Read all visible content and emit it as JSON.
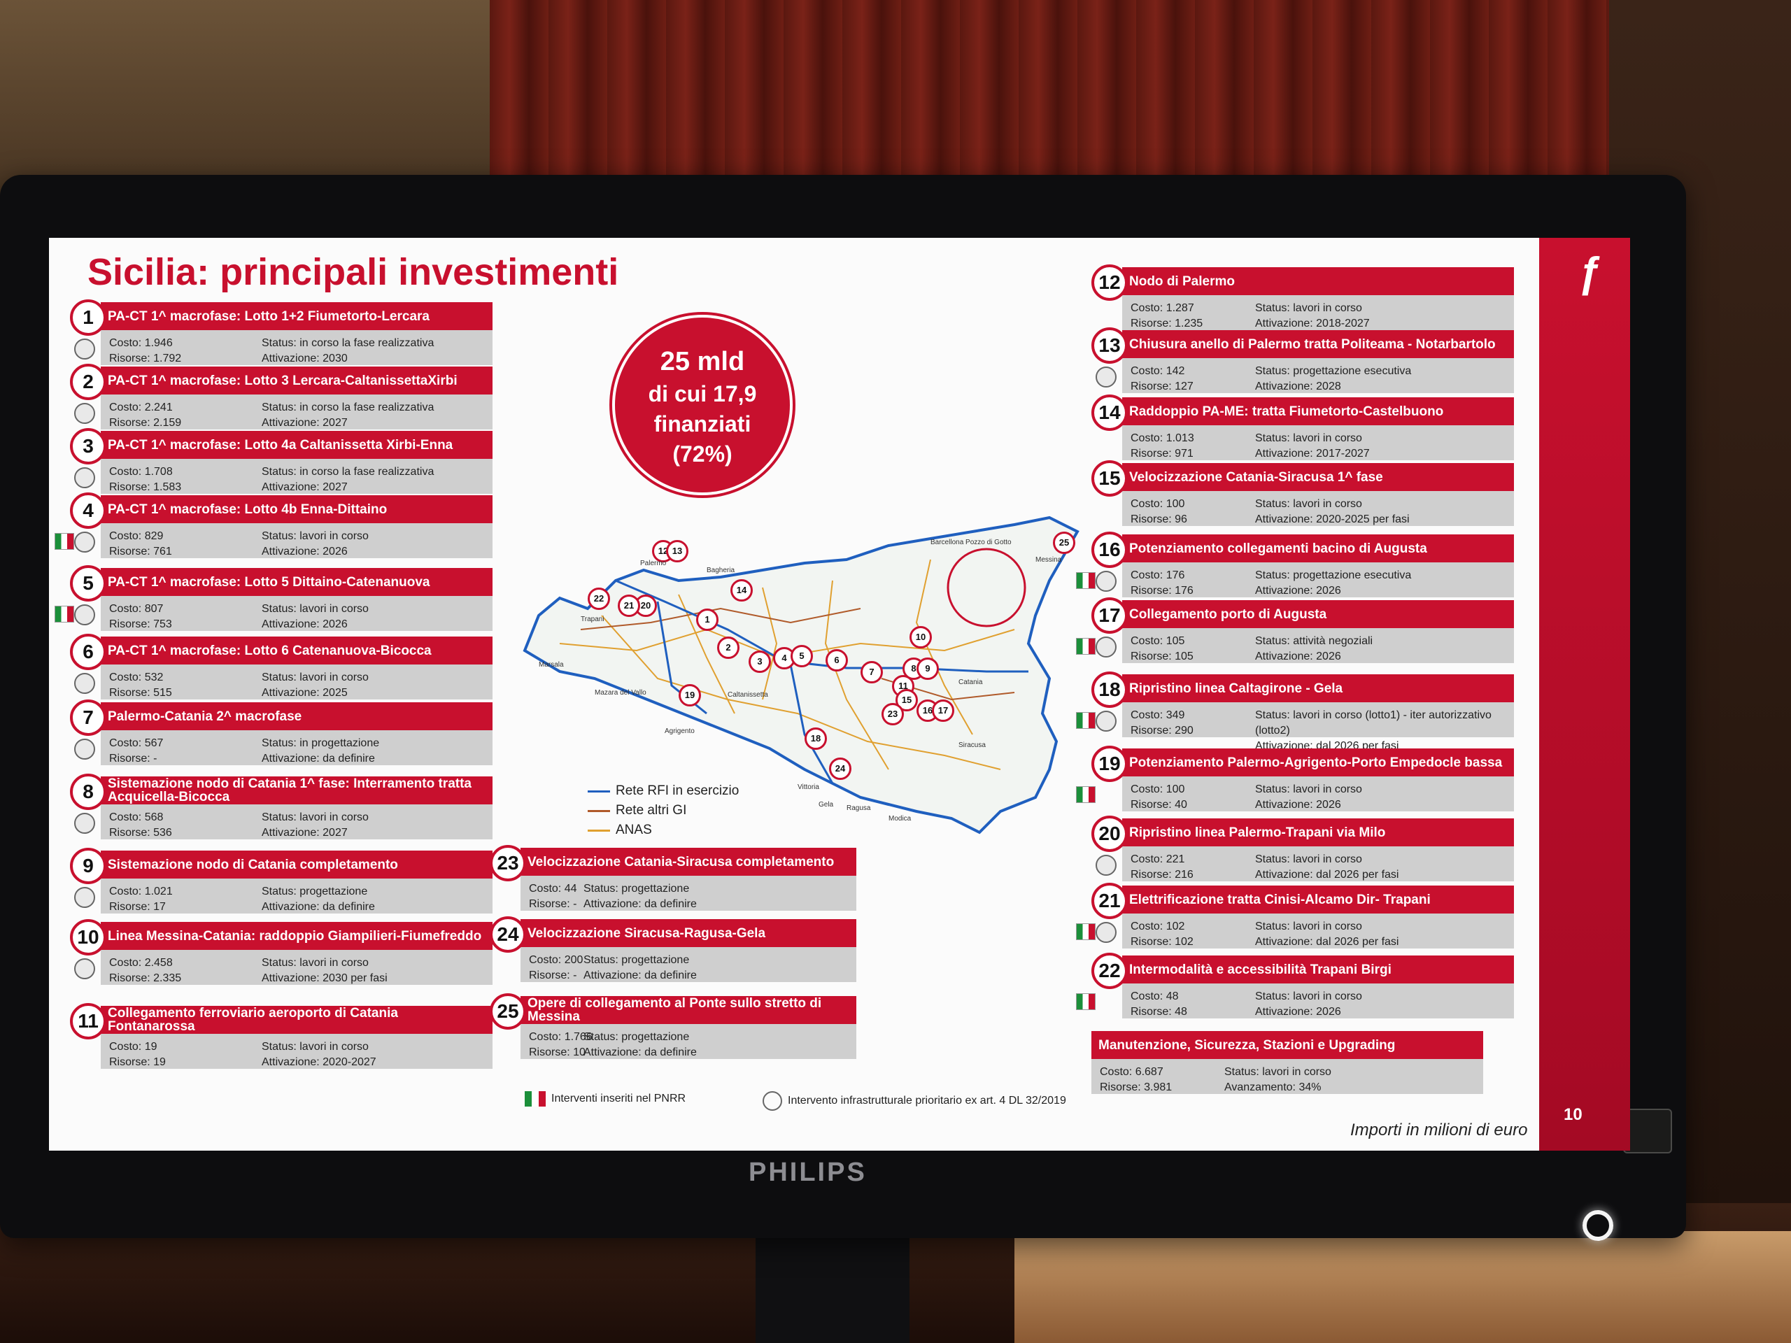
{
  "title": "Sicilia: principali investimenti",
  "summary": {
    "line1": "25 mld",
    "line2": "di cui 17,9",
    "line3": "finanziati",
    "line4": "(72%)"
  },
  "legend": [
    "Rete RFI in esercizio",
    "Rete altri GI",
    "ANAS"
  ],
  "legend_colors": [
    "#1f5fbf",
    "#b05a2a",
    "#e0a030"
  ],
  "footer_pnrr": "Interventi inseriti nel PNRR",
  "footer_prior": "Intervento infrastrutturale prioritario ex art. 4 DL 32/2019",
  "units_note": "Importi in milioni di euro",
  "page_number": "10",
  "monitor_brand": "PHILIPS",
  "map_labels": [
    "Palermo",
    "Bagheria",
    "Trapani",
    "Marsala",
    "Mazara del Vallo",
    "Agrigento",
    "Caltanissetta",
    "Messina",
    "Barcellona Pozzo di Gotto",
    "Catania",
    "Siracusa",
    "Gela",
    "Vittoria",
    "Ragusa",
    "Modica"
  ],
  "projects": [
    {
      "n": "1",
      "title": "PA-CT 1^ macrofase: Lotto 1+2 Fiumetorto-Lercara",
      "costo": "Costo: 1.946",
      "risorse": "Risorse: 1.792",
      "status": "Status: in corso la fase realizzativa",
      "attivazione": "Attivazione: 2030"
    },
    {
      "n": "2",
      "title": "PA-CT 1^ macrofase: Lotto 3 Lercara-CaltanissettaXirbi",
      "costo": "Costo: 2.241",
      "risorse": "Risorse: 2.159",
      "status": "Status: in corso la fase realizzativa",
      "attivazione": "Attivazione: 2027"
    },
    {
      "n": "3",
      "title": "PA-CT 1^ macrofase: Lotto 4a Caltanissetta Xirbi-Enna",
      "costo": "Costo: 1.708",
      "risorse": "Risorse: 1.583",
      "status": "Status: in corso la fase realizzativa",
      "attivazione": "Attivazione: 2027"
    },
    {
      "n": "4",
      "title": "PA-CT 1^ macrofase: Lotto 4b Enna-Dittaino",
      "costo": "Costo: 829",
      "risorse": "Risorse: 761",
      "status": "Status: lavori in corso",
      "attivazione": "Attivazione: 2026"
    },
    {
      "n": "5",
      "title": "PA-CT 1^ macrofase: Lotto 5 Dittaino-Catenanuova",
      "costo": "Costo: 807",
      "risorse": "Risorse: 753",
      "status": "Status: lavori in corso",
      "attivazione": "Attivazione: 2026"
    },
    {
      "n": "6",
      "title": "PA-CT 1^ macrofase: Lotto 6 Catenanuova-Bicocca",
      "costo": "Costo: 532",
      "risorse": "Risorse: 515",
      "status": "Status: lavori in corso",
      "attivazione": "Attivazione: 2025"
    },
    {
      "n": "7",
      "title": "Palermo-Catania 2^ macrofase",
      "costo": "Costo: 567",
      "risorse": "Risorse: -",
      "status": "Status: in progettazione",
      "attivazione": "Attivazione: da definire"
    },
    {
      "n": "8",
      "title": "Sistemazione nodo di Catania 1^ fase: Interramento tratta Acquicella-Bicocca",
      "costo": "Costo: 568",
      "risorse": "Risorse: 536",
      "status": "Status: lavori in corso",
      "attivazione": "Attivazione: 2027"
    },
    {
      "n": "9",
      "title": "Sistemazione nodo di Catania completamento",
      "costo": "Costo: 1.021",
      "risorse": "Risorse: 17",
      "status": "Status: progettazione",
      "attivazione": "Attivazione: da definire"
    },
    {
      "n": "10",
      "title": "Linea Messina-Catania: raddoppio Giampilieri-Fiumefreddo",
      "costo": "Costo: 2.458",
      "risorse": "Risorse: 2.335",
      "status": "Status: lavori in corso",
      "attivazione": "Attivazione: 2030 per fasi"
    },
    {
      "n": "11",
      "title": "Collegamento ferroviario aeroporto di Catania Fontanarossa",
      "costo": "Costo: 19",
      "risorse": "Risorse: 19",
      "status": "Status: lavori in corso",
      "attivazione": "Attivazione: 2020-2027"
    },
    {
      "n": "12",
      "title": "Nodo di Palermo",
      "costo": "Costo: 1.287",
      "risorse": "Risorse: 1.235",
      "status": "Status: lavori in corso",
      "attivazione": "Attivazione: 2018-2027"
    },
    {
      "n": "13",
      "title": "Chiusura anello di Palermo tratta Politeama - Notarbartolo",
      "costo": "Costo: 142",
      "risorse": "Risorse: 127",
      "status": "Status: progettazione esecutiva",
      "attivazione": "Attivazione: 2028"
    },
    {
      "n": "14",
      "title": "Raddoppio PA-ME: tratta Fiumetorto-Castelbuono",
      "costo": "Costo: 1.013",
      "risorse": "Risorse: 971",
      "status": "Status: lavori in corso",
      "attivazione": "Attivazione: 2017-2027"
    },
    {
      "n": "15",
      "title": "Velocizzazione Catania-Siracusa 1^ fase",
      "costo": "Costo: 100",
      "risorse": "Risorse: 96",
      "status": "Status: lavori in corso",
      "attivazione": "Attivazione: 2020-2025 per fasi"
    },
    {
      "n": "16",
      "title": "Potenziamento collegamenti bacino di Augusta",
      "costo": "Costo: 176",
      "risorse": "Risorse: 176",
      "status": "Status: progettazione esecutiva",
      "attivazione": "Attivazione: 2026"
    },
    {
      "n": "17",
      "title": "Collegamento porto di Augusta",
      "costo": "Costo: 105",
      "risorse": "Risorse: 105",
      "status": "Status: attività negoziali",
      "attivazione": "Attivazione: 2026"
    },
    {
      "n": "18",
      "title": "Ripristino linea Caltagirone - Gela",
      "costo": "Costo: 349",
      "risorse": "Risorse: 290",
      "status": "Status: lavori in corso (lotto1) - iter autorizzativo (lotto2)",
      "attivazione": "Attivazione: dal 2026 per fasi"
    },
    {
      "n": "19",
      "title": "Potenziamento Palermo-Agrigento-Porto Empedocle bassa",
      "costo": "Costo: 100",
      "risorse": "Risorse: 40",
      "status": "Status: lavori in corso",
      "attivazione": "Attivazione: 2026"
    },
    {
      "n": "20",
      "title": "Ripristino linea Palermo-Trapani via Milo",
      "costo": "Costo: 221",
      "risorse": "Risorse: 216",
      "status": "Status: lavori in corso",
      "attivazione": "Attivazione: dal 2026 per fasi"
    },
    {
      "n": "21",
      "title": "Elettrificazione tratta Cinisi-Alcamo Dir- Trapani",
      "costo": "Costo: 102",
      "risorse": "Risorse: 102",
      "status": "Status: lavori in corso",
      "attivazione": "Attivazione: dal 2026 per fasi"
    },
    {
      "n": "22",
      "title": "Intermodalità e accessibilità Trapani Birgi",
      "costo": "Costo: 48",
      "risorse": "Risorse: 48",
      "status": "Status: lavori in corso",
      "attivazione": "Attivazione: 2026"
    },
    {
      "n": "23",
      "title": "Velocizzazione Catania-Siracusa completamento",
      "costo": "Costo: 44",
      "risorse": "Risorse: -",
      "status": "Status: progettazione",
      "attivazione": "Attivazione: da definire"
    },
    {
      "n": "24",
      "title": "Velocizzazione Siracusa-Ragusa-Gela",
      "costo": "Costo: 200",
      "risorse": "Risorse: -",
      "status": "Status: progettazione",
      "attivazione": "Attivazione: da definire"
    },
    {
      "n": "25",
      "title": "Opere di collegamento al Ponte sullo stretto di Messina",
      "costo": "Costo: 1.766",
      "risorse": "Risorse: 10",
      "status": "Status: progettazione",
      "attivazione": "Attivazione: da definire"
    },
    {
      "n": "",
      "title": "Manutenzione, Sicurezza, Stazioni e Upgrading",
      "costo": "Costo: 6.687",
      "risorse": "Risorse: 3.981",
      "status": "Status: lavori in corso",
      "attivazione": "Avanzamento: 34%"
    }
  ]
}
